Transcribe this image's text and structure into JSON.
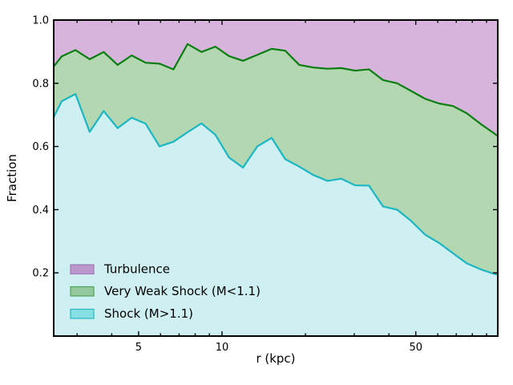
{
  "figure": {
    "xlabel": "r (kpc)",
    "ylabel": "Fraction",
    "background": "#ffffff"
  },
  "legend": {
    "items": [
      {
        "label": "Turbulence",
        "fill": "#bb97cc",
        "edge": "#9e79b4"
      },
      {
        "label": "Very Weak Shock (M<1.1)",
        "fill": "#93c99c",
        "edge": "#4fa05c"
      },
      {
        "label": "Shock (M>1.1)",
        "fill": "#85dfe3",
        "edge": "#2db6c0"
      }
    ]
  },
  "chart_data": {
    "type": "area",
    "title": "",
    "xlabel": "r (kpc)",
    "ylabel": "Fraction",
    "xscale": "log",
    "xlim": [
      2.47,
      98.8
    ],
    "ylim": [
      0.0,
      1.0
    ],
    "x_ticks_major": [
      5,
      10,
      50
    ],
    "x_tick_labels": [
      "5",
      "10",
      "50"
    ],
    "x_ticks_minor": [
      3,
      4,
      6,
      7,
      8,
      9,
      20,
      30,
      40,
      60,
      70,
      80,
      90
    ],
    "y_ticks": [
      0.2,
      0.4,
      0.6,
      0.8,
      1.0
    ],
    "y_tick_labels": [
      "0.2",
      "0.4",
      "0.6",
      "0.8",
      "1.0"
    ],
    "grid": false,
    "legend_position": "lower-left",
    "x": [
      2.47,
      2.64,
      2.96,
      3.33,
      3.74,
      4.2,
      4.72,
      5.3,
      5.95,
      6.68,
      7.51,
      8.43,
      9.46,
      10.6,
      11.9,
      13.4,
      15.1,
      16.9,
      19.0,
      21.3,
      24.0,
      26.9,
      30.2,
      33.9,
      38.1,
      42.8,
      48.0,
      54.0,
      60.6,
      68.1,
      76.4,
      85.8,
      96.4,
      98.8
    ],
    "series": [
      {
        "name": "Shock (M>1.1)",
        "role": "cumulative-boundary",
        "note": "fraction with M>1.1; cyan region spans 0 to this curve",
        "values": [
          0.693,
          0.743,
          0.766,
          0.646,
          0.712,
          0.658,
          0.691,
          0.672,
          0.6,
          0.615,
          0.645,
          0.673,
          0.637,
          0.565,
          0.533,
          0.6,
          0.627,
          0.56,
          0.536,
          0.51,
          0.491,
          0.498,
          0.477,
          0.476,
          0.41,
          0.4,
          0.365,
          0.321,
          0.295,
          0.262,
          0.23,
          0.211,
          0.196,
          0.195
        ],
        "fill": "#cff0f2",
        "line": "#1ab6c3"
      },
      {
        "name": "Very Weak Shock (M<1.1)",
        "role": "cumulative-boundary",
        "note": "green region spans the Shock curve up to this curve",
        "values": [
          0.853,
          0.885,
          0.905,
          0.876,
          0.899,
          0.858,
          0.888,
          0.865,
          0.862,
          0.844,
          0.924,
          0.899,
          0.916,
          0.886,
          0.871,
          0.89,
          0.909,
          0.903,
          0.858,
          0.85,
          0.846,
          0.848,
          0.84,
          0.844,
          0.81,
          0.8,
          0.776,
          0.751,
          0.736,
          0.728,
          0.705,
          0.671,
          0.64,
          0.633
        ],
        "fill": "#b3d7b1",
        "line": "#0a7e11"
      },
      {
        "name": "Turbulence",
        "role": "remainder-to-one",
        "note": "purple region spans the Very Weak Shock curve up to 1.0",
        "values_top": 1.0,
        "fill": "#d6b4dc",
        "line": null
      }
    ]
  }
}
